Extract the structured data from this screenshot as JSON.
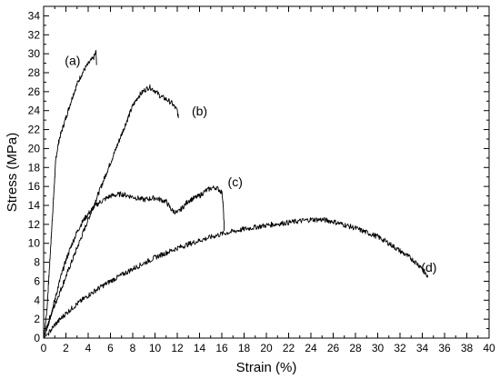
{
  "chart_data": {
    "type": "line",
    "xlabel": "Strain (%)",
    "ylabel": "Stress  (MPa)",
    "xlim": [
      0,
      40
    ],
    "ylim": [
      0,
      35
    ],
    "xticks": [
      0,
      2,
      4,
      6,
      8,
      10,
      12,
      14,
      16,
      18,
      20,
      22,
      24,
      26,
      28,
      30,
      32,
      34,
      36,
      38,
      40
    ],
    "yticks": [
      0,
      2,
      4,
      6,
      8,
      10,
      12,
      14,
      16,
      18,
      20,
      22,
      24,
      26,
      28,
      30,
      32,
      34
    ],
    "grid": false,
    "legend": "none",
    "line_color": "#000000",
    "series": [
      {
        "name": "(a)",
        "label": {
          "x": 2.6,
          "y": 28.8
        },
        "points": [
          [
            0,
            0
          ],
          [
            0.3,
            3
          ],
          [
            0.6,
            9
          ],
          [
            0.9,
            15
          ],
          [
            1.1,
            19
          ],
          [
            1.4,
            21
          ],
          [
            1.8,
            22.5
          ],
          [
            2.2,
            24
          ],
          [
            2.6,
            25.5
          ],
          [
            3.0,
            26.8
          ],
          [
            3.4,
            27.8
          ],
          [
            3.8,
            28.6
          ],
          [
            4.2,
            29.2
          ],
          [
            4.5,
            29.6
          ],
          [
            4.7,
            30.2
          ],
          [
            4.75,
            28.8
          ]
        ]
      },
      {
        "name": "(b)",
        "label": {
          "x": 14.0,
          "y": 23.5
        },
        "points": [
          [
            0,
            0
          ],
          [
            0.5,
            2
          ],
          [
            1,
            3.5
          ],
          [
            1.5,
            5
          ],
          [
            2,
            6.5
          ],
          [
            2.5,
            8
          ],
          [
            3,
            9.5
          ],
          [
            3.5,
            11
          ],
          [
            4,
            12.5
          ],
          [
            4.5,
            14
          ],
          [
            5,
            15.5
          ],
          [
            5.5,
            17
          ],
          [
            6,
            18.5
          ],
          [
            6.5,
            20
          ],
          [
            7,
            21.5
          ],
          [
            7.5,
            23
          ],
          [
            8,
            24.5
          ],
          [
            8.5,
            25.5
          ],
          [
            9,
            26.1
          ],
          [
            9.5,
            26.5
          ],
          [
            10,
            26.1
          ],
          [
            10.5,
            25.5
          ],
          [
            11,
            25.2
          ],
          [
            11.5,
            24.8
          ],
          [
            12,
            24.0
          ],
          [
            12.1,
            23.2
          ]
        ]
      },
      {
        "name": "(c)",
        "label": {
          "x": 17.2,
          "y": 16.0
        },
        "points": [
          [
            0,
            0
          ],
          [
            0.5,
            1.8
          ],
          [
            1,
            4
          ],
          [
            1.5,
            6.3
          ],
          [
            2,
            8.2
          ],
          [
            2.5,
            9.8
          ],
          [
            3,
            11.2
          ],
          [
            3.5,
            12.3
          ],
          [
            4,
            13.1
          ],
          [
            4.5,
            13.8
          ],
          [
            5,
            14.3
          ],
          [
            6,
            15
          ],
          [
            7,
            15.2
          ],
          [
            8,
            14.9
          ],
          [
            9,
            14.6
          ],
          [
            10,
            14.8
          ],
          [
            11,
            14.4
          ],
          [
            11.5,
            13.5
          ],
          [
            12,
            13.2
          ],
          [
            12.5,
            13.8
          ],
          [
            13,
            14.5
          ],
          [
            14,
            15.0
          ],
          [
            14.5,
            15.5
          ],
          [
            15,
            15.8
          ],
          [
            15.5,
            15.9
          ],
          [
            16,
            15.4
          ],
          [
            16.1,
            14.5
          ],
          [
            16.2,
            12.0
          ],
          [
            16.2,
            11.3
          ]
        ]
      },
      {
        "name": "(d)",
        "label": {
          "x": 34.6,
          "y": 7.0
        },
        "points": [
          [
            0,
            0
          ],
          [
            0.5,
            0.6
          ],
          [
            1,
            1.4
          ],
          [
            2,
            2.6
          ],
          [
            3,
            3.6
          ],
          [
            4,
            4.5
          ],
          [
            5,
            5.3
          ],
          [
            6,
            6.0
          ],
          [
            8,
            7.3
          ],
          [
            10,
            8.5
          ],
          [
            12,
            9.5
          ],
          [
            14,
            10.3
          ],
          [
            16,
            11.0
          ],
          [
            18,
            11.5
          ],
          [
            20,
            11.9
          ],
          [
            22,
            12.2
          ],
          [
            24,
            12.5
          ],
          [
            25,
            12.5
          ],
          [
            26,
            12.3
          ],
          [
            28,
            11.6
          ],
          [
            30,
            10.7
          ],
          [
            31,
            10.0
          ],
          [
            32,
            9.2
          ],
          [
            33,
            8.4
          ],
          [
            34,
            7.4
          ],
          [
            34.5,
            6.4
          ]
        ]
      }
    ]
  }
}
